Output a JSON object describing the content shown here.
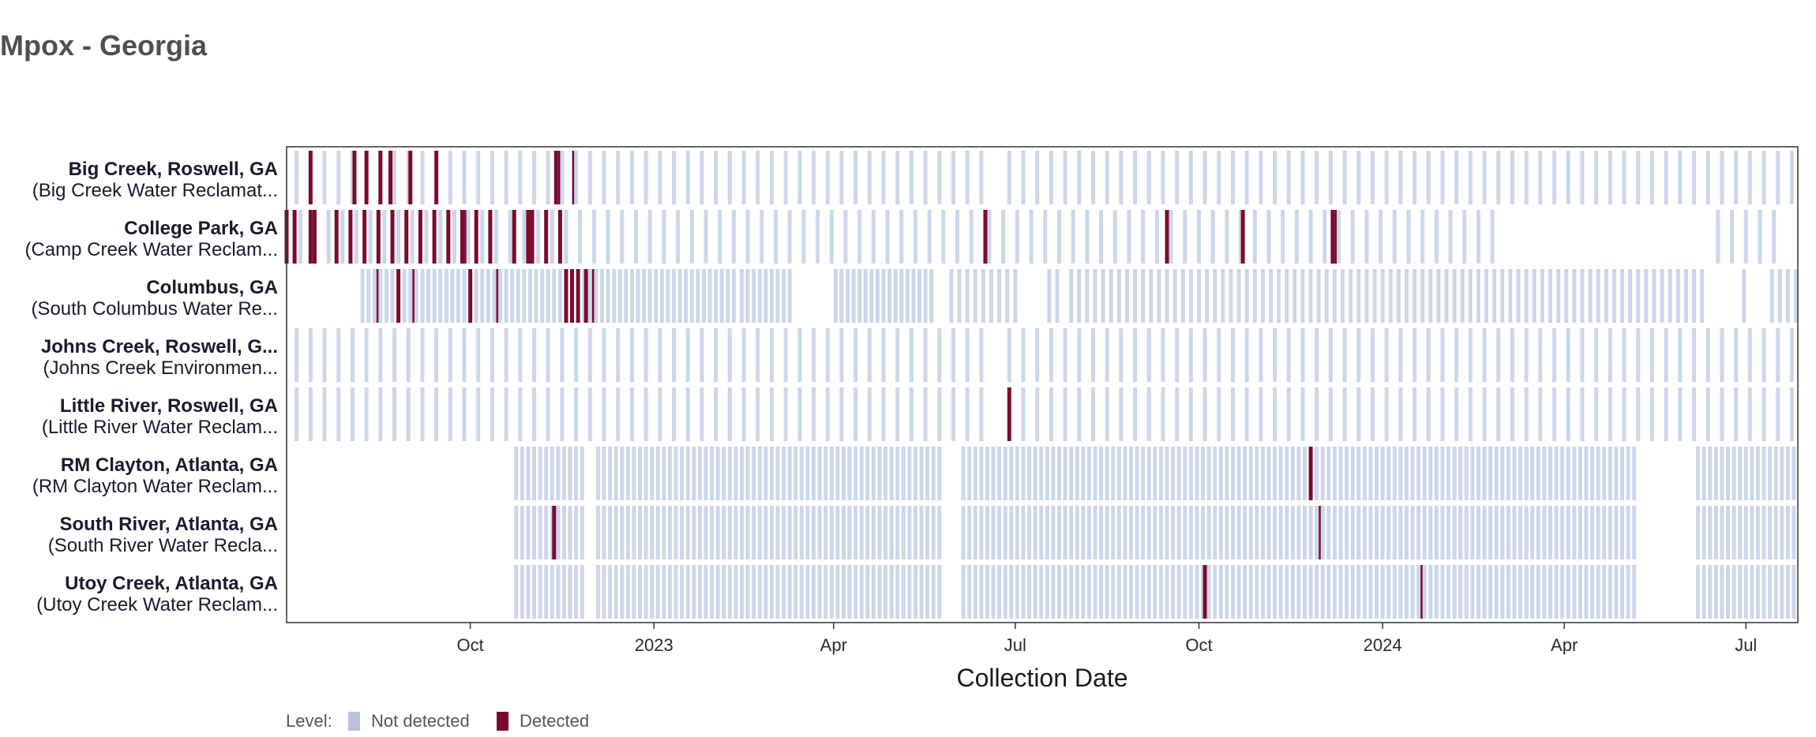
{
  "chart_data": {
    "type": "heatmap",
    "title": "Mpox - Georgia",
    "subtitle": "",
    "xlabel": "Collection Date",
    "ylabel": "",
    "x_range": [
      "2022-07-01",
      "2024-07-27"
    ],
    "x_ticks": [
      {
        "date": "2022-10-01",
        "label": "Oct"
      },
      {
        "date": "2023-01-01",
        "label": "2023"
      },
      {
        "date": "2023-04-01",
        "label": "Apr"
      },
      {
        "date": "2023-07-01",
        "label": "Jul"
      },
      {
        "date": "2023-10-01",
        "label": "Oct"
      },
      {
        "date": "2024-01-01",
        "label": "2024"
      },
      {
        "date": "2024-04-01",
        "label": "Apr"
      },
      {
        "date": "2024-07-01",
        "label": "Jul"
      }
    ],
    "legend": {
      "title": "Level:",
      "placement": "bottom-left",
      "items": [
        {
          "label": "Not detected",
          "color": "#b8c3e0"
        },
        {
          "label": "Detected",
          "color": "#7a0b2f"
        }
      ]
    },
    "colors": {
      "not_detected": "#cdd6ea",
      "detected": "#7a0b2f",
      "title": "#4f4f4f"
    },
    "sites": [
      {
        "name": "Big Creek, Roswell, GA",
        "subtitle": "(Big Creek Water Reclamat...",
        "sampling_periods": [
          {
            "start": "2022-07-06",
            "end": "2022-07-20",
            "interval_days": 7
          },
          {
            "start": "2022-07-27",
            "end": "2023-06-20",
            "interval_days": 7
          },
          {
            "start": "2023-06-28",
            "end": "2024-07-24",
            "interval_days": 7
          }
        ],
        "detected": [
          "2022-07-13",
          "2022-08-04",
          "2022-08-10",
          "2022-08-17",
          "2022-08-22",
          "2022-09-01",
          "2022-09-14",
          "2022-11-13",
          "2022-11-15",
          "2022-11-22"
        ]
      },
      {
        "name": "College Park, GA",
        "subtitle": "(Camp Creek Water Reclam...",
        "sampling_periods": [
          {
            "start": "2022-07-01",
            "end": "2023-06-14",
            "interval_days": 7
          },
          {
            "start": "2023-06-18",
            "end": "2024-02-28",
            "interval_days": 7
          },
          {
            "start": "2024-06-17",
            "end": "2024-07-20",
            "interval_days": 7
          }
        ],
        "detected": [
          "2022-07-01",
          "2022-07-05",
          "2022-07-13",
          "2022-07-15",
          "2022-07-26",
          "2022-08-02",
          "2022-08-09",
          "2022-08-16",
          "2022-08-23",
          "2022-08-30",
          "2022-09-06",
          "2022-09-13",
          "2022-09-20",
          "2022-09-27",
          "2022-09-29",
          "2022-10-04",
          "2022-10-11",
          "2022-10-23",
          "2022-10-30",
          "2022-11-01",
          "2022-11-08",
          "2022-11-15",
          "2023-06-16",
          "2023-09-15",
          "2023-10-23",
          "2023-12-07",
          "2023-12-09"
        ]
      },
      {
        "name": "Columbus, GA",
        "subtitle": "(South Columbus Water Re...",
        "sampling_periods": [
          {
            "start": "2022-08-08",
            "end": "2023-02-10",
            "interval_days": 3
          },
          {
            "start": "2023-02-14",
            "end": "2023-03-10",
            "interval_days": 3
          },
          {
            "start": "2023-04-02",
            "end": "2023-05-20",
            "interval_days": 3
          },
          {
            "start": "2023-05-30",
            "end": "2023-07-01",
            "interval_days": 4
          },
          {
            "start": "2023-07-18",
            "end": "2023-07-24",
            "interval_days": 4
          },
          {
            "start": "2023-07-29",
            "end": "2024-06-12",
            "interval_days": 4
          },
          {
            "start": "2024-06-30",
            "end": "2024-07-03",
            "interval_days": 4
          },
          {
            "start": "2024-07-14",
            "end": "2024-07-26",
            "interval_days": 4
          }
        ],
        "detected": [
          "2022-08-16",
          "2022-08-26",
          "2022-09-03",
          "2022-10-01",
          "2022-10-15",
          "2022-11-18",
          "2022-11-21",
          "2022-11-24",
          "2022-11-28",
          "2022-12-02"
        ]
      },
      {
        "name": "Johns Creek, Roswell, G...",
        "subtitle": "(Johns Creek Environmen...",
        "sampling_periods": [
          {
            "start": "2022-07-06",
            "end": "2022-07-20",
            "interval_days": 7
          },
          {
            "start": "2022-07-27",
            "end": "2023-06-20",
            "interval_days": 7
          },
          {
            "start": "2023-06-28",
            "end": "2024-07-24",
            "interval_days": 7
          }
        ],
        "detected": []
      },
      {
        "name": "Little River, Roswell, GA",
        "subtitle": "(Little River Water Reclam...",
        "sampling_periods": [
          {
            "start": "2022-07-06",
            "end": "2022-07-20",
            "interval_days": 7
          },
          {
            "start": "2022-07-27",
            "end": "2023-06-20",
            "interval_days": 7
          },
          {
            "start": "2023-06-28",
            "end": "2024-07-24",
            "interval_days": 7
          }
        ],
        "detected": [
          "2023-06-28"
        ]
      },
      {
        "name": "RM Clayton, Atlanta, GA",
        "subtitle": "(RM Clayton Water Reclam...",
        "sampling_periods": [
          {
            "start": "2022-10-24",
            "end": "2022-11-27",
            "interval_days": 3
          },
          {
            "start": "2022-12-04",
            "end": "2023-05-25",
            "interval_days": 3
          },
          {
            "start": "2023-06-05",
            "end": "2024-05-07",
            "interval_days": 3
          },
          {
            "start": "2024-06-07",
            "end": "2024-07-26",
            "interval_days": 3
          }
        ],
        "detected": [
          "2023-11-26"
        ]
      },
      {
        "name": "South River, Atlanta, GA",
        "subtitle": "(South River Water Recla...",
        "sampling_periods": [
          {
            "start": "2022-10-24",
            "end": "2022-11-27",
            "interval_days": 3
          },
          {
            "start": "2022-12-04",
            "end": "2023-05-25",
            "interval_days": 3
          },
          {
            "start": "2023-06-05",
            "end": "2024-05-07",
            "interval_days": 3
          },
          {
            "start": "2024-06-07",
            "end": "2024-07-26",
            "interval_days": 3
          }
        ],
        "detected": [
          "2022-11-12",
          "2023-12-01"
        ]
      },
      {
        "name": "Utoy Creek, Atlanta, GA",
        "subtitle": "(Utoy Creek Water Reclam...",
        "sampling_periods": [
          {
            "start": "2022-10-24",
            "end": "2022-11-27",
            "interval_days": 3
          },
          {
            "start": "2022-12-04",
            "end": "2023-05-25",
            "interval_days": 3
          },
          {
            "start": "2023-06-05",
            "end": "2024-05-07",
            "interval_days": 3
          },
          {
            "start": "2024-06-07",
            "end": "2024-07-26",
            "interval_days": 3
          }
        ],
        "detected": [
          "2023-10-04",
          "2024-01-21"
        ]
      }
    ]
  }
}
